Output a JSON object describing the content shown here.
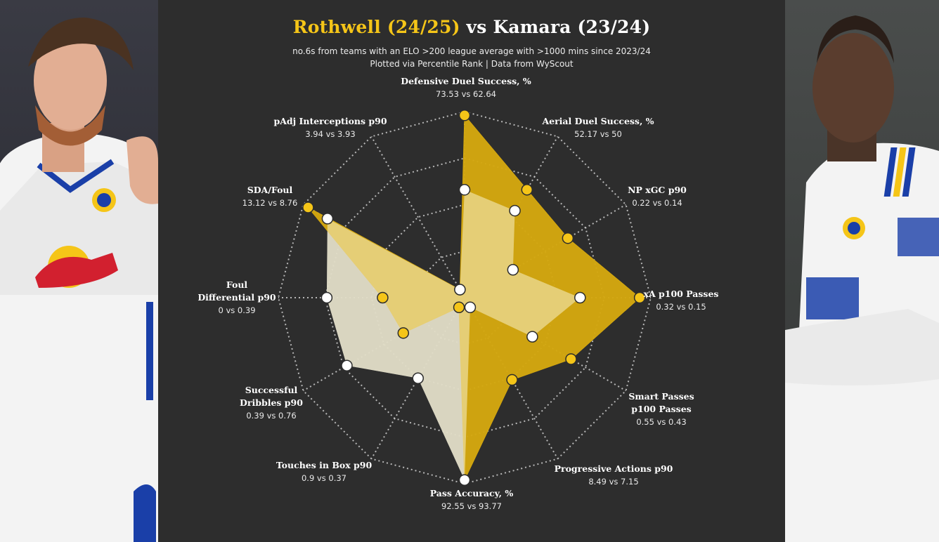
{
  "chart_data": {
    "type": "radar",
    "scale": "percentile rank (0-100)",
    "title_parts": {
      "player1": "Rothwell (24/25)",
      "connector": "vs",
      "player2": "Kamara (23/24)"
    },
    "subtitle_line1": "no.6s from teams with an ELO >200 league average with >1000 mins since 2023/24",
    "subtitle_line2": "Plotted via Percentile Rank | Data from WyScout",
    "colors": {
      "player1_fill": "#d4a70f",
      "player1_point": "#f5c518",
      "player2_fill": "#f4ecc6",
      "player2_fill_gray": "#c8c8c8",
      "player2_point": "#ffffff",
      "grid": "#d0d0d0",
      "background": "#2d2d2d"
    },
    "metrics": [
      {
        "label": "Defensive Duel Success, %",
        "values_text": "73.53 vs 62.64",
        "p1": 98,
        "p2": 58
      },
      {
        "label": "Aerial Duel Success, %",
        "values_text": "52.17 vs 50",
        "p1": 67,
        "p2": 54
      },
      {
        "label": "NP xGC p90",
        "values_text": "0.22 vs 0.14",
        "p1": 64,
        "p2": 30
      },
      {
        "label": "xA p100 Passes",
        "values_text": "0.32 vs 0.15",
        "p1": 94,
        "p2": 62
      },
      {
        "label": "Smart Passes\np100 Passes",
        "values_text": "0.55 vs 0.43",
        "p1": 66,
        "p2": 42
      },
      {
        "label": "Progressive Actions p90",
        "values_text": "8.49 vs 7.15",
        "p1": 51,
        "p2": 6
      },
      {
        "label": "Pass Accuracy, %",
        "values_text": "92.55 vs 93.77",
        "p1": 98,
        "p2": 98
      },
      {
        "label": "Touches in Box p90",
        "values_text": "0.9 vs 0.37",
        "p1": 6,
        "p2": 50
      },
      {
        "label": "Successful\nDribbles p90",
        "values_text": "0.39 vs 0.76",
        "p1": 38,
        "p2": 73
      },
      {
        "label": "Foul\nDifferential p90",
        "values_text": "0 vs 0.39",
        "p1": 44,
        "p2": 74
      },
      {
        "label": "SDA/Foul",
        "values_text": "13.12 vs 8.76",
        "p1": 97,
        "p2": 85
      },
      {
        "label": "pAdj Interceptions p90",
        "values_text": "3.94 vs 3.93",
        "p1": 5,
        "p2": 5
      }
    ]
  }
}
